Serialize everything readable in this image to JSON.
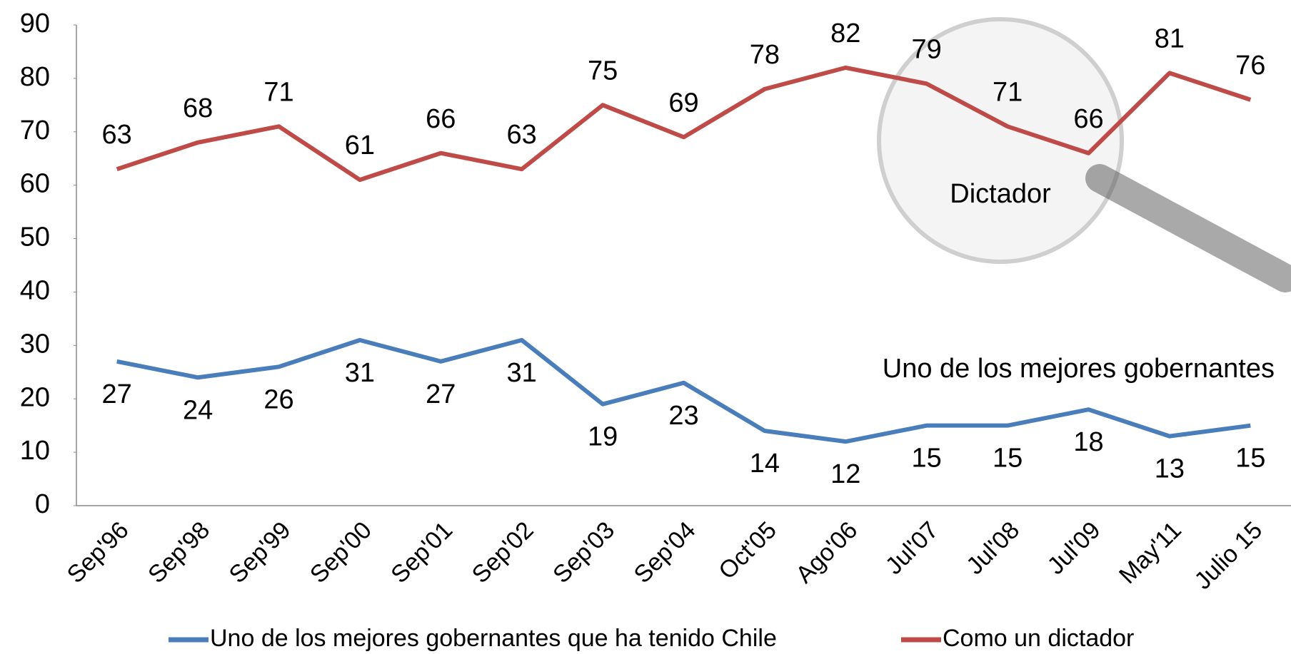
{
  "chart_data": {
    "type": "line",
    "categories": [
      "Sep'96",
      "Sep'98",
      "Sep'99",
      "Sep'00",
      "Sep'01",
      "Sep'02",
      "Sep'03",
      "Sep'04",
      "Oct'05",
      "Ago'06",
      "Jul'07",
      "Jul'08",
      "Jul'09",
      "May'11",
      "Julio 15"
    ],
    "series": [
      {
        "name": "Uno de los mejores gobernantes que ha tenido Chile",
        "color": "#4a7ebb",
        "values": [
          27,
          24,
          26,
          31,
          27,
          31,
          19,
          23,
          14,
          12,
          15,
          15,
          18,
          13,
          15
        ]
      },
      {
        "name": "Como un dictador",
        "color": "#be4b48",
        "values": [
          63,
          68,
          71,
          61,
          66,
          63,
          75,
          69,
          78,
          82,
          79,
          71,
          66,
          81,
          76
        ]
      }
    ],
    "annotations": [
      "Dictador",
      "Uno de los mejores gobernantes"
    ],
    "ylim": [
      0,
      90
    ],
    "yticks": [
      0,
      10,
      20,
      30,
      40,
      50,
      60,
      70,
      80,
      90
    ],
    "legend": "bottom"
  }
}
